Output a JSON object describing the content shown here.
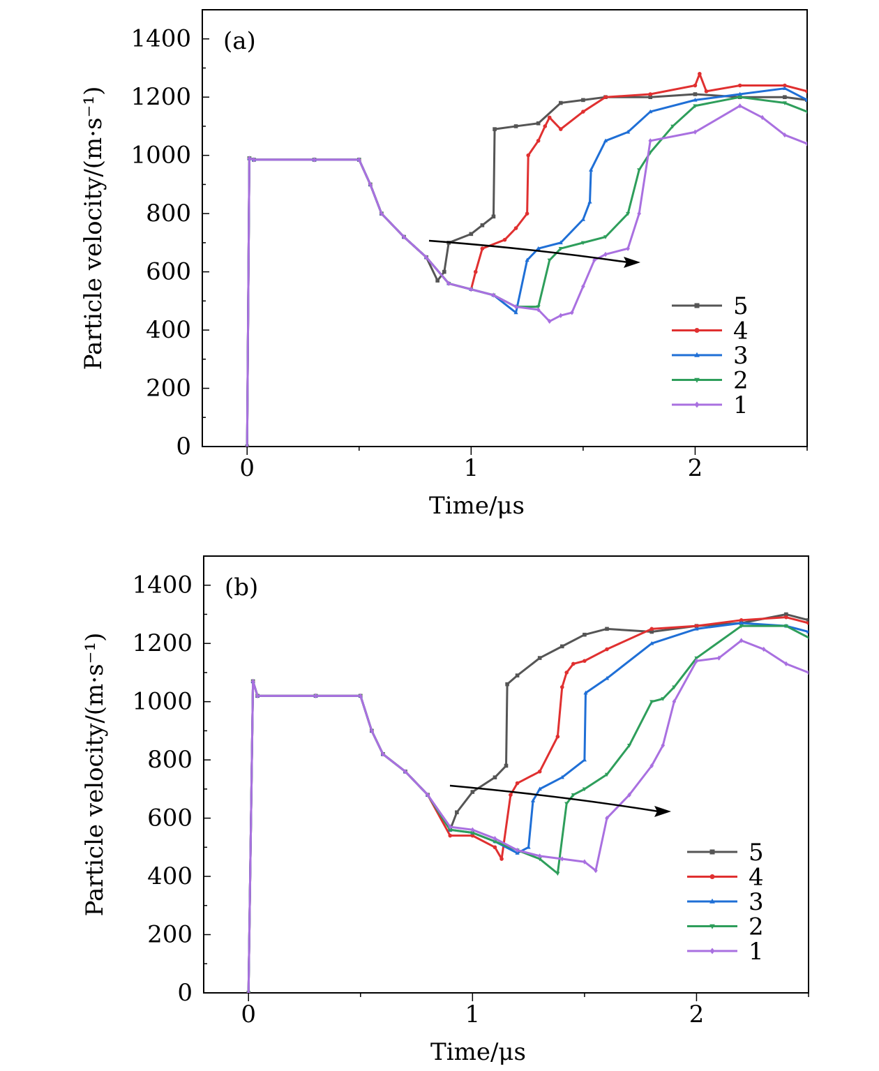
{
  "chart_data": [
    {
      "type": "line",
      "panel_label": "(a)",
      "xlabel": "Time/μs",
      "ylabel": "Particle velocity/(m·s⁻¹)",
      "xlim": [
        -0.2,
        2.5
      ],
      "ylim": [
        0,
        1500
      ],
      "xticks": [
        0,
        1,
        2
      ],
      "yticks": [
        0,
        200,
        400,
        600,
        800,
        1000,
        1200,
        1400
      ],
      "legend_position": "lower-right",
      "annotation": "arrow",
      "series": [
        {
          "name": "5",
          "color": "#555555",
          "marker": "square",
          "x": [
            0,
            0.01,
            0.03,
            0.3,
            0.5,
            0.55,
            0.6,
            0.7,
            0.8,
            0.85,
            0.88,
            0.9,
            1.0,
            1.05,
            1.1,
            1.105,
            1.2,
            1.3,
            1.4,
            1.5,
            1.6,
            1.8,
            2.0,
            2.2,
            2.4,
            2.5
          ],
          "y": [
            0,
            990,
            985,
            985,
            985,
            900,
            800,
            720,
            650,
            570,
            600,
            700,
            730,
            760,
            790,
            1090,
            1100,
            1110,
            1180,
            1190,
            1200,
            1200,
            1210,
            1200,
            1200,
            1190
          ]
        },
        {
          "name": "4",
          "color": "#e03030",
          "marker": "circle",
          "x": [
            0,
            0.01,
            0.03,
            0.3,
            0.5,
            0.55,
            0.6,
            0.7,
            0.8,
            0.9,
            1.0,
            1.02,
            1.05,
            1.15,
            1.2,
            1.25,
            1.255,
            1.3,
            1.33,
            1.35,
            1.4,
            1.5,
            1.6,
            1.8,
            2.0,
            2.02,
            2.05,
            2.2,
            2.4,
            2.5
          ],
          "y": [
            0,
            990,
            985,
            985,
            985,
            900,
            800,
            720,
            650,
            560,
            540,
            600,
            680,
            710,
            750,
            800,
            1000,
            1050,
            1100,
            1130,
            1090,
            1150,
            1200,
            1210,
            1240,
            1280,
            1220,
            1240,
            1240,
            1220
          ]
        },
        {
          "name": "3",
          "color": "#1f6fd6",
          "marker": "triangle",
          "x": [
            0,
            0.01,
            0.03,
            0.3,
            0.5,
            0.55,
            0.6,
            0.7,
            0.8,
            0.9,
            1.0,
            1.1,
            1.2,
            1.25,
            1.3,
            1.4,
            1.5,
            1.53,
            1.535,
            1.6,
            1.7,
            1.8,
            2.0,
            2.2,
            2.4,
            2.5
          ],
          "y": [
            0,
            990,
            985,
            985,
            985,
            900,
            800,
            720,
            650,
            560,
            540,
            520,
            460,
            640,
            680,
            700,
            780,
            840,
            950,
            1050,
            1080,
            1150,
            1190,
            1210,
            1230,
            1190
          ]
        },
        {
          "name": "2",
          "color": "#2e9e5b",
          "marker": "triangle-down",
          "x": [
            0,
            0.01,
            0.03,
            0.3,
            0.5,
            0.55,
            0.6,
            0.7,
            0.8,
            0.9,
            1.0,
            1.1,
            1.2,
            1.3,
            1.35,
            1.4,
            1.5,
            1.6,
            1.7,
            1.75,
            1.8,
            1.9,
            2.0,
            2.2,
            2.4,
            2.5
          ],
          "y": [
            0,
            990,
            985,
            985,
            985,
            900,
            800,
            720,
            650,
            560,
            540,
            520,
            480,
            480,
            640,
            680,
            700,
            720,
            800,
            950,
            1010,
            1100,
            1170,
            1200,
            1180,
            1150
          ]
        },
        {
          "name": "1",
          "color": "#a970e0",
          "marker": "diamond",
          "x": [
            0,
            0.01,
            0.03,
            0.3,
            0.5,
            0.55,
            0.6,
            0.7,
            0.8,
            0.9,
            1.0,
            1.1,
            1.2,
            1.3,
            1.35,
            1.4,
            1.45,
            1.5,
            1.55,
            1.6,
            1.7,
            1.75,
            1.8,
            2.0,
            2.2,
            2.3,
            2.4,
            2.5
          ],
          "y": [
            0,
            990,
            985,
            985,
            985,
            900,
            800,
            720,
            650,
            560,
            540,
            520,
            480,
            470,
            430,
            450,
            460,
            550,
            640,
            660,
            680,
            800,
            1050,
            1080,
            1170,
            1130,
            1070,
            1040
          ]
        }
      ]
    },
    {
      "type": "line",
      "panel_label": "(b)",
      "xlabel": "Time/μs",
      "ylabel": "Particle velocity/(m·s⁻¹)",
      "xlim": [
        -0.2,
        2.5
      ],
      "ylim": [
        0,
        1500
      ],
      "xticks": [
        0,
        1,
        2
      ],
      "yticks": [
        0,
        200,
        400,
        600,
        800,
        1000,
        1200,
        1400
      ],
      "legend_position": "lower-right",
      "annotation": "arrow",
      "series": [
        {
          "name": "5",
          "color": "#555555",
          "marker": "square",
          "x": [
            0,
            0.02,
            0.04,
            0.3,
            0.5,
            0.55,
            0.6,
            0.7,
            0.8,
            0.9,
            0.93,
            1.0,
            1.1,
            1.15,
            1.155,
            1.2,
            1.3,
            1.4,
            1.5,
            1.6,
            1.8,
            2.0,
            2.2,
            2.4,
            2.5
          ],
          "y": [
            0,
            1070,
            1020,
            1020,
            1020,
            900,
            820,
            760,
            680,
            560,
            620,
            690,
            740,
            780,
            1060,
            1090,
            1150,
            1190,
            1230,
            1250,
            1240,
            1260,
            1270,
            1300,
            1280
          ]
        },
        {
          "name": "4",
          "color": "#e03030",
          "marker": "circle",
          "x": [
            0,
            0.02,
            0.04,
            0.3,
            0.5,
            0.55,
            0.6,
            0.7,
            0.8,
            0.9,
            1.0,
            1.1,
            1.13,
            1.17,
            1.2,
            1.3,
            1.38,
            1.4,
            1.42,
            1.45,
            1.5,
            1.6,
            1.8,
            2.0,
            2.2,
            2.4,
            2.5
          ],
          "y": [
            0,
            1070,
            1020,
            1020,
            1020,
            900,
            820,
            760,
            680,
            540,
            540,
            500,
            460,
            680,
            720,
            760,
            880,
            1050,
            1100,
            1130,
            1140,
            1180,
            1250,
            1260,
            1280,
            1290,
            1270
          ]
        },
        {
          "name": "3",
          "color": "#1f6fd6",
          "marker": "triangle",
          "x": [
            0,
            0.02,
            0.04,
            0.3,
            0.5,
            0.55,
            0.6,
            0.7,
            0.8,
            0.9,
            1.0,
            1.1,
            1.2,
            1.25,
            1.27,
            1.3,
            1.4,
            1.5,
            1.505,
            1.6,
            1.8,
            2.0,
            2.2,
            2.4,
            2.5
          ],
          "y": [
            0,
            1070,
            1020,
            1020,
            1020,
            900,
            820,
            760,
            680,
            560,
            550,
            520,
            480,
            500,
            660,
            700,
            740,
            800,
            1030,
            1080,
            1200,
            1250,
            1270,
            1260,
            1240
          ]
        },
        {
          "name": "2",
          "color": "#2e9e5b",
          "marker": "triangle-down",
          "x": [
            0,
            0.02,
            0.04,
            0.3,
            0.5,
            0.55,
            0.6,
            0.7,
            0.8,
            0.9,
            1.0,
            1.1,
            1.2,
            1.3,
            1.38,
            1.42,
            1.45,
            1.5,
            1.6,
            1.7,
            1.8,
            1.85,
            1.9,
            2.0,
            2.2,
            2.4,
            2.5
          ],
          "y": [
            0,
            1070,
            1020,
            1020,
            1020,
            900,
            820,
            760,
            680,
            560,
            550,
            520,
            490,
            460,
            410,
            650,
            680,
            700,
            750,
            850,
            1000,
            1010,
            1050,
            1150,
            1260,
            1260,
            1220
          ]
        },
        {
          "name": "1",
          "color": "#a970e0",
          "marker": "diamond",
          "x": [
            0,
            0.02,
            0.04,
            0.3,
            0.5,
            0.55,
            0.6,
            0.7,
            0.8,
            0.9,
            1.0,
            1.1,
            1.2,
            1.3,
            1.4,
            1.5,
            1.55,
            1.6,
            1.7,
            1.8,
            1.85,
            1.9,
            2.0,
            2.1,
            2.2,
            2.3,
            2.4,
            2.5
          ],
          "y": [
            0,
            1070,
            1020,
            1020,
            1020,
            900,
            820,
            760,
            680,
            570,
            560,
            530,
            490,
            470,
            460,
            450,
            420,
            600,
            680,
            780,
            850,
            1000,
            1140,
            1150,
            1210,
            1180,
            1130,
            1100
          ]
        }
      ]
    }
  ]
}
